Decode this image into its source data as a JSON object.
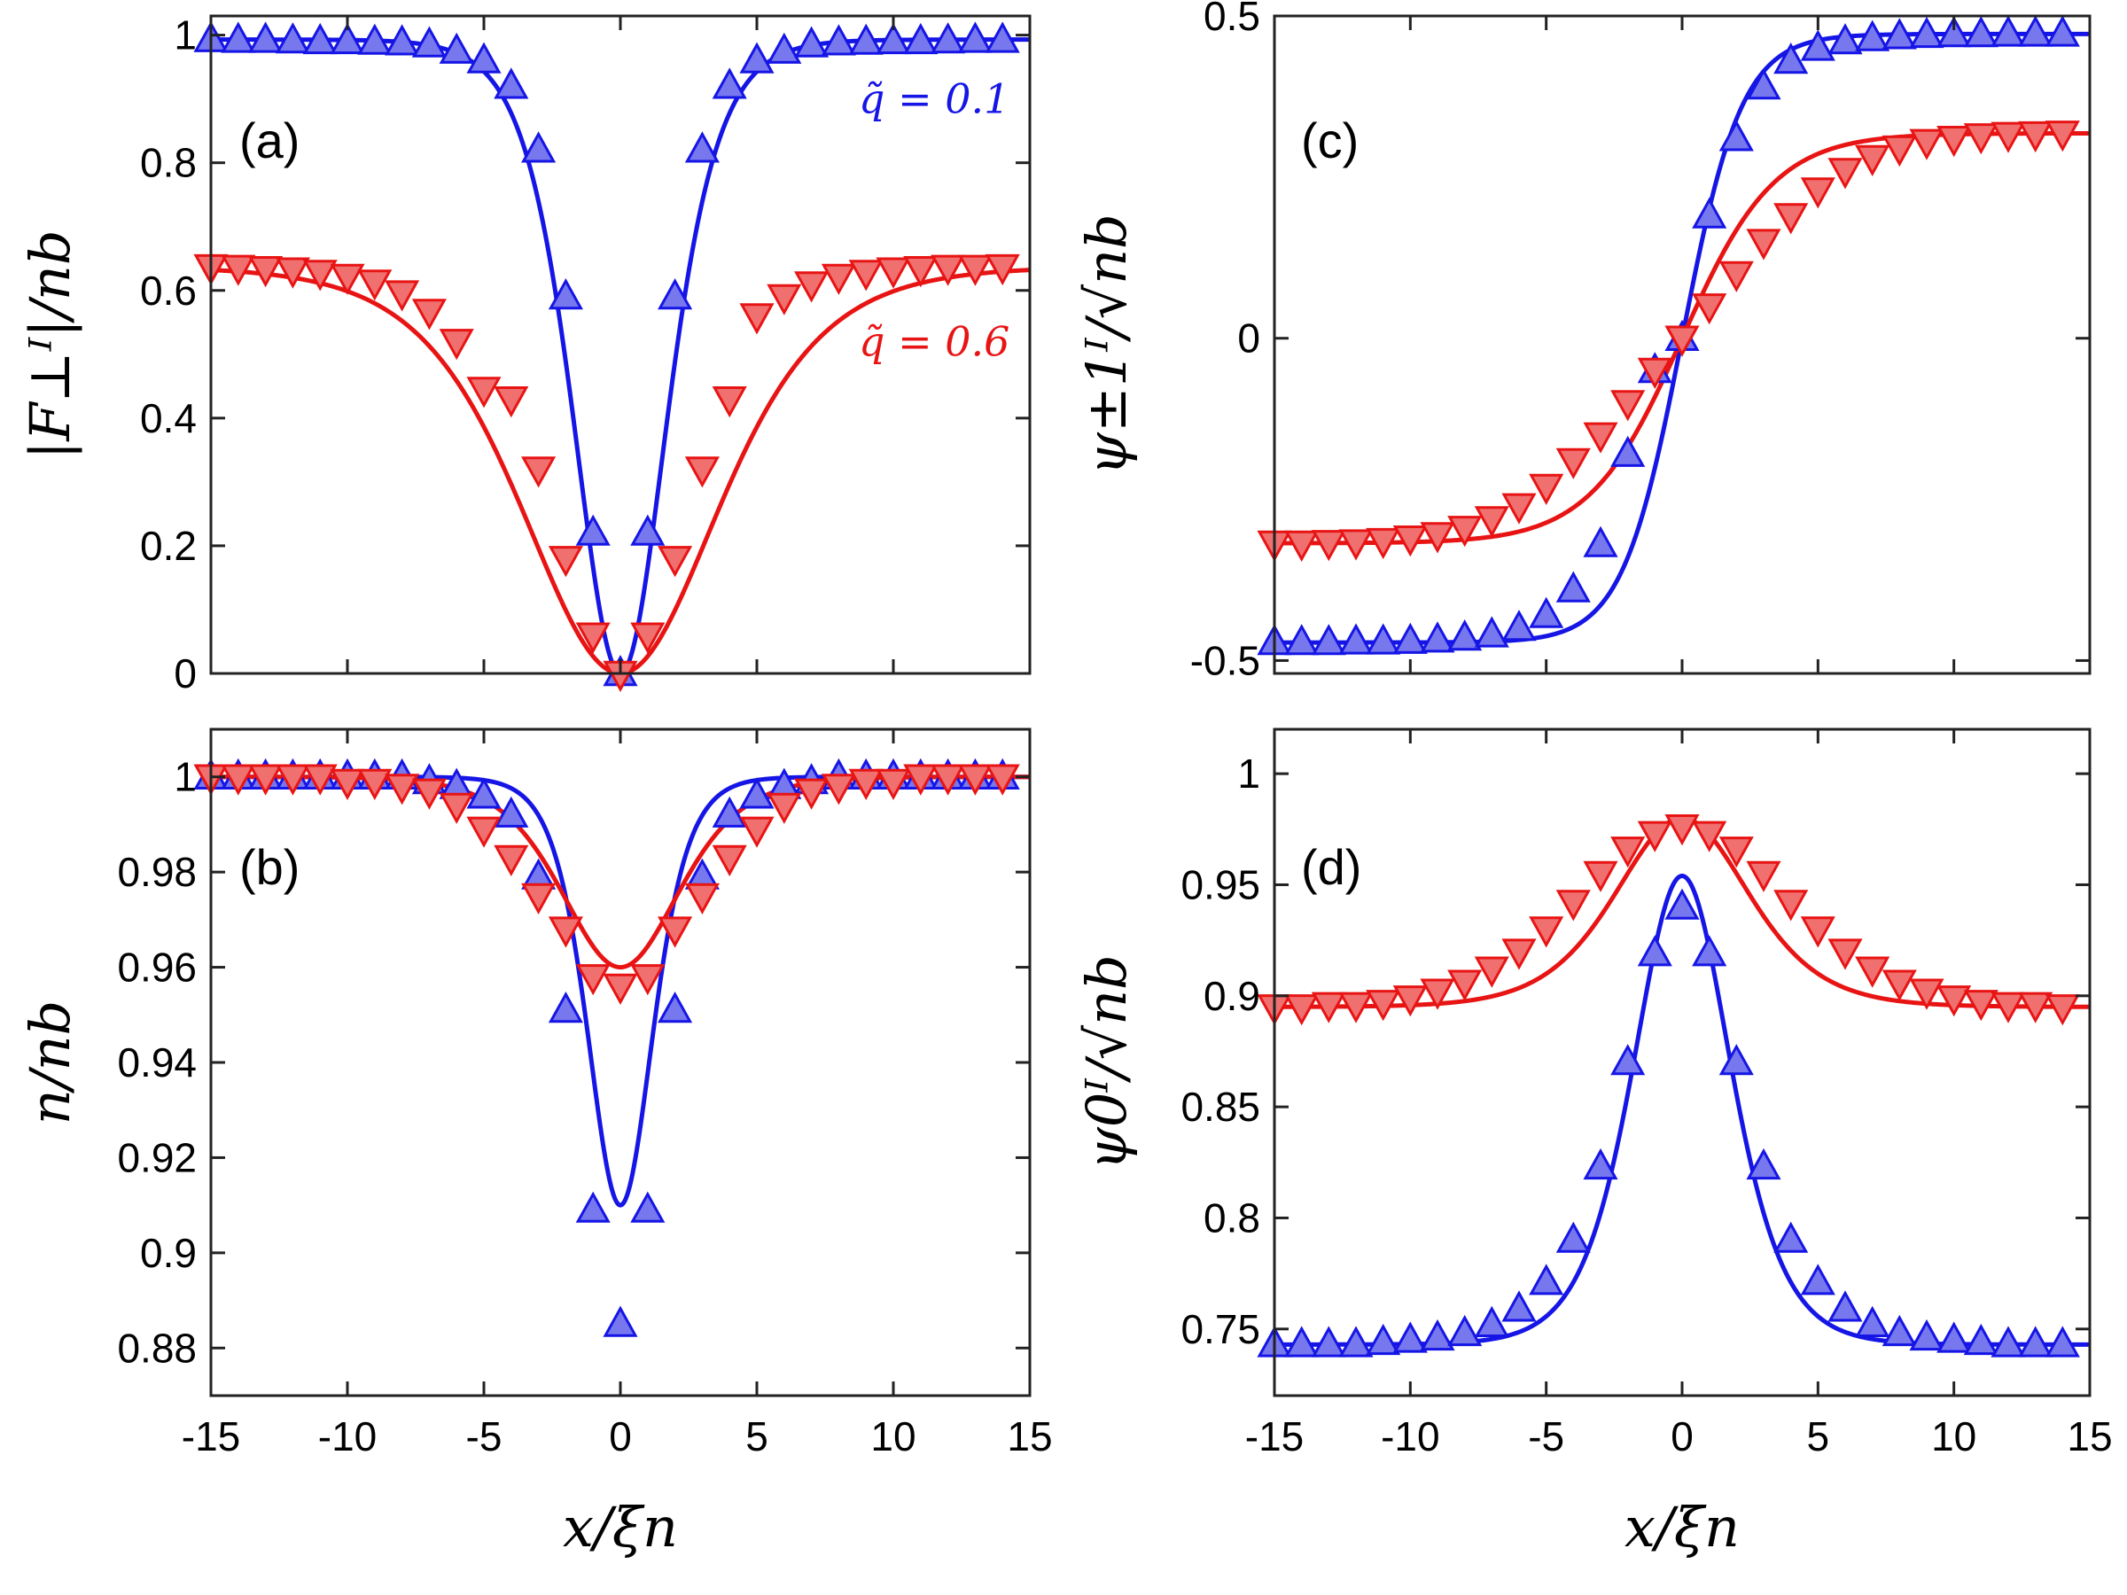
{
  "colors": {
    "blue": "#1515e6",
    "red": "#e81414",
    "blue_fill": "#7777ee",
    "red_fill": "#f07070"
  },
  "chart_data": [
    {
      "id": "a",
      "type": "line",
      "panel_label": "(a)",
      "ylabel": "|F⊥ᴵ|/nb",
      "xlabel": "",
      "xlim": [
        -15,
        15
      ],
      "ylim": [
        0,
        1.03
      ],
      "xticks": [
        -15,
        -10,
        -5,
        0,
        5,
        10,
        15
      ],
      "yticks": [
        0,
        0.2,
        0.4,
        0.6,
        0.8,
        1
      ],
      "ytick_labels": [
        "0",
        "0.2",
        "0.4",
        "0.6",
        "0.8",
        "1"
      ],
      "show_xtick_labels": false,
      "annotations": [
        {
          "text": "q̃ = 0.1",
          "color": "blue",
          "x": 11.5,
          "y": 0.9
        },
        {
          "text": "q̃ = 0.6",
          "color": "red",
          "x": 11.5,
          "y": 0.52
        }
      ],
      "series": [
        {
          "name": "q̃=0.1 (line)",
          "color": "blue",
          "kind": "line",
          "formula": "tanh",
          "amp": 0.993,
          "base": 0,
          "width": 2.3
        },
        {
          "name": "q̃=0.6 (line)",
          "color": "red",
          "kind": "line",
          "formula": "tanh",
          "amp": 0.637,
          "base": 0,
          "width": 4.8
        },
        {
          "name": "q̃=0.1 (markers)",
          "color": "blue",
          "kind": "markers",
          "marker": "up",
          "x": [
            -15,
            -14,
            -13,
            -12,
            -11,
            -10,
            -9,
            -8,
            -7,
            -6,
            -5,
            -4,
            -3,
            -2,
            -1,
            0,
            1,
            2,
            3,
            4,
            5,
            6,
            7,
            8,
            9,
            10,
            11,
            12,
            13,
            14
          ],
          "y": [
            0.993,
            0.992,
            0.992,
            0.991,
            0.99,
            0.99,
            0.989,
            0.988,
            0.985,
            0.975,
            0.96,
            0.92,
            0.82,
            0.59,
            0.22,
            0.0,
            0.22,
            0.59,
            0.82,
            0.92,
            0.96,
            0.975,
            0.985,
            0.988,
            0.989,
            0.99,
            0.99,
            0.991,
            0.992,
            0.992
          ]
        },
        {
          "name": "q̃=0.6 (markers)",
          "color": "red",
          "kind": "markers",
          "marker": "down",
          "x": [
            -15,
            -14,
            -13,
            -12,
            -11,
            -10,
            -9,
            -8,
            -7,
            -6,
            -5,
            -4,
            -3,
            -2,
            -1,
            0,
            1,
            2,
            3,
            4,
            5,
            6,
            7,
            8,
            9,
            10,
            11,
            12,
            13,
            14
          ],
          "y": [
            0.637,
            0.636,
            0.634,
            0.632,
            0.628,
            0.622,
            0.613,
            0.596,
            0.567,
            0.52,
            0.445,
            0.43,
            0.32,
            0.18,
            0.06,
            0.0,
            0.06,
            0.18,
            0.32,
            0.43,
            0.56,
            0.59,
            0.61,
            0.622,
            0.628,
            0.632,
            0.634,
            0.636,
            0.636,
            0.637
          ]
        }
      ]
    },
    {
      "id": "b",
      "type": "line",
      "panel_label": "(b)",
      "ylabel": "n/nb",
      "xlabel": "x/ξn",
      "xlim": [
        -15,
        15
      ],
      "ylim": [
        0.87,
        1.01
      ],
      "xticks": [
        -15,
        -10,
        -5,
        0,
        5,
        10,
        15
      ],
      "xtick_labels": [
        "-15",
        "-10",
        "-5",
        "0",
        "5",
        "10",
        "15"
      ],
      "yticks": [
        0.88,
        0.9,
        0.92,
        0.94,
        0.96,
        0.98,
        1
      ],
      "ytick_labels": [
        "0.88",
        "0.9",
        "0.92",
        "0.94",
        "0.96",
        "0.98",
        "1"
      ],
      "show_xtick_labels": true,
      "annotations": [],
      "series": [
        {
          "name": "q̃=0.1 (line)",
          "color": "blue",
          "kind": "line",
          "formula": "sech2dip",
          "top": 1.0,
          "depth": 0.09,
          "width": 1.6
        },
        {
          "name": "q̃=0.6 (line)",
          "color": "red",
          "kind": "line",
          "formula": "sech2dip",
          "top": 1.0,
          "depth": 0.04,
          "width": 2.9
        },
        {
          "name": "q̃=0.1 (markers)",
          "color": "blue",
          "kind": "markers",
          "marker": "up",
          "x": [
            -15,
            -14,
            -13,
            -12,
            -11,
            -10,
            -9,
            -8,
            -7,
            -6,
            -5,
            -4,
            -3,
            -2,
            -1,
            0,
            1,
            2,
            3,
            4,
            5,
            6,
            7,
            8,
            9,
            10,
            11,
            12,
            13,
            14
          ],
          "y": [
            1.0,
            1.0,
            1.0,
            1.0,
            1.0,
            1.0,
            1.0,
            1.0,
            0.999,
            0.998,
            0.996,
            0.992,
            0.979,
            0.951,
            0.909,
            0.885,
            0.909,
            0.951,
            0.979,
            0.992,
            0.996,
            0.998,
            0.999,
            1.0,
            1.0,
            1.0,
            1.0,
            1.0,
            1.0,
            1.0
          ]
        },
        {
          "name": "q̃=0.6 (markers)",
          "color": "red",
          "kind": "markers",
          "marker": "down",
          "x": [
            -15,
            -14,
            -13,
            -12,
            -11,
            -10,
            -9,
            -8,
            -7,
            -6,
            -5,
            -4,
            -3,
            -2,
            -1,
            0,
            1,
            2,
            3,
            4,
            5,
            6,
            7,
            8,
            9,
            10,
            11,
            12,
            13,
            14
          ],
          "y": [
            1.0,
            1.0,
            1.0,
            1.0,
            1.0,
            0.999,
            0.999,
            0.998,
            0.997,
            0.994,
            0.989,
            0.983,
            0.975,
            0.968,
            0.958,
            0.956,
            0.958,
            0.968,
            0.975,
            0.983,
            0.989,
            0.994,
            0.997,
            0.998,
            0.999,
            0.999,
            1.0,
            1.0,
            1.0,
            1.0
          ]
        }
      ]
    },
    {
      "id": "c",
      "type": "line",
      "panel_label": "(c)",
      "ylabel": "ψ±1ᴵ/√nb",
      "xlabel": "",
      "xlim": [
        -15,
        15
      ],
      "ylim": [
        -0.52,
        0.5
      ],
      "xticks": [
        -15,
        -10,
        -5,
        0,
        5,
        10,
        15
      ],
      "yticks": [
        -0.5,
        0,
        0.5
      ],
      "ytick_labels": [
        "-0.5",
        "0",
        "0.5"
      ],
      "show_xtick_labels": false,
      "annotations": [],
      "series": [
        {
          "name": "q̃=0.1 (line)",
          "color": "blue",
          "kind": "line",
          "formula": "tanhodd",
          "amp": 0.472,
          "width": 2.2
        },
        {
          "name": "q̃=0.6 (line)",
          "color": "red",
          "kind": "line",
          "formula": "tanhodd",
          "amp": 0.318,
          "width": 3.4
        },
        {
          "name": "q̃=0.1 (markers)",
          "color": "blue",
          "kind": "markers",
          "marker": "up",
          "x": [
            -15,
            -14,
            -13,
            -12,
            -11,
            -10,
            -9,
            -8,
            -7,
            -6,
            -5,
            -4,
            -3,
            -2,
            -1,
            0,
            1,
            2,
            3,
            4,
            5,
            6,
            7,
            8,
            9,
            10,
            11,
            12,
            13,
            14
          ],
          "y": [
            -0.472,
            -0.472,
            -0.472,
            -0.471,
            -0.471,
            -0.47,
            -0.468,
            -0.465,
            -0.46,
            -0.45,
            -0.43,
            -0.39,
            -0.32,
            -0.18,
            -0.05,
            0.0,
            0.19,
            0.31,
            0.39,
            0.43,
            0.45,
            0.46,
            0.465,
            0.468,
            0.47,
            0.471,
            0.471,
            0.472,
            0.472,
            0.472
          ]
        },
        {
          "name": "q̃=0.6 (markers)",
          "color": "red",
          "kind": "markers",
          "marker": "down",
          "x": [
            -15,
            -14,
            -13,
            -12,
            -11,
            -10,
            -9,
            -8,
            -7,
            -6,
            -5,
            -4,
            -3,
            -2,
            -1,
            0,
            1,
            2,
            3,
            4,
            5,
            6,
            7,
            8,
            9,
            10,
            11,
            12,
            13,
            14
          ],
          "y": [
            -0.318,
            -0.318,
            -0.317,
            -0.316,
            -0.314,
            -0.31,
            -0.305,
            -0.295,
            -0.28,
            -0.26,
            -0.23,
            -0.19,
            -0.15,
            -0.1,
            -0.05,
            0.0,
            0.05,
            0.1,
            0.15,
            0.19,
            0.23,
            0.26,
            0.28,
            0.295,
            0.305,
            0.31,
            0.314,
            0.316,
            0.317,
            0.318
          ]
        }
      ]
    },
    {
      "id": "d",
      "type": "line",
      "panel_label": "(d)",
      "ylabel": "ψ0ᴵ/√nb",
      "xlabel": "x/ξn",
      "xlim": [
        -15,
        15
      ],
      "ylim": [
        0.72,
        1.02
      ],
      "xticks": [
        -15,
        -10,
        -5,
        0,
        5,
        10,
        15
      ],
      "xtick_labels": [
        "-15",
        "-10",
        "-5",
        "0",
        "5",
        "10",
        "15"
      ],
      "yticks": [
        0.75,
        0.8,
        0.85,
        0.9,
        0.95,
        1
      ],
      "ytick_labels": [
        "0.75",
        "0.8",
        "0.85",
        "0.9",
        "0.95",
        "1"
      ],
      "show_xtick_labels": true,
      "annotations": [],
      "series": [
        {
          "name": "q̃=0.1 (line)",
          "color": "blue",
          "kind": "line",
          "formula": "sech2bump",
          "base": 0.743,
          "height": 0.211,
          "width": 2.4
        },
        {
          "name": "q̃=0.6 (line)",
          "color": "red",
          "kind": "line",
          "formula": "sech2bump",
          "base": 0.895,
          "height": 0.085,
          "width": 3.3
        },
        {
          "name": "q̃=0.1 (markers)",
          "color": "blue",
          "kind": "markers",
          "marker": "up",
          "x": [
            -15,
            -14,
            -13,
            -12,
            -11,
            -10,
            -9,
            -8,
            -7,
            -6,
            -5,
            -4,
            -3,
            -2,
            -1,
            0,
            1,
            2,
            3,
            4,
            5,
            6,
            7,
            8,
            9,
            10,
            11,
            12,
            13,
            14
          ],
          "y": [
            0.743,
            0.743,
            0.743,
            0.743,
            0.744,
            0.745,
            0.746,
            0.748,
            0.752,
            0.759,
            0.771,
            0.79,
            0.823,
            0.87,
            0.919,
            0.94,
            0.919,
            0.87,
            0.823,
            0.79,
            0.771,
            0.759,
            0.752,
            0.748,
            0.746,
            0.745,
            0.744,
            0.743,
            0.743,
            0.743
          ]
        },
        {
          "name": "q̃=0.6 (markers)",
          "color": "red",
          "kind": "markers",
          "marker": "down",
          "x": [
            -15,
            -14,
            -13,
            -12,
            -11,
            -10,
            -9,
            -8,
            -7,
            -6,
            -5,
            -4,
            -3,
            -2,
            -1,
            0,
            1,
            2,
            3,
            4,
            5,
            6,
            7,
            8,
            9,
            10,
            11,
            12,
            13,
            14
          ],
          "y": [
            0.895,
            0.895,
            0.896,
            0.896,
            0.897,
            0.899,
            0.902,
            0.906,
            0.912,
            0.92,
            0.93,
            0.942,
            0.955,
            0.966,
            0.973,
            0.976,
            0.973,
            0.966,
            0.955,
            0.942,
            0.93,
            0.92,
            0.912,
            0.906,
            0.902,
            0.899,
            0.897,
            0.896,
            0.896,
            0.895
          ]
        }
      ]
    }
  ]
}
